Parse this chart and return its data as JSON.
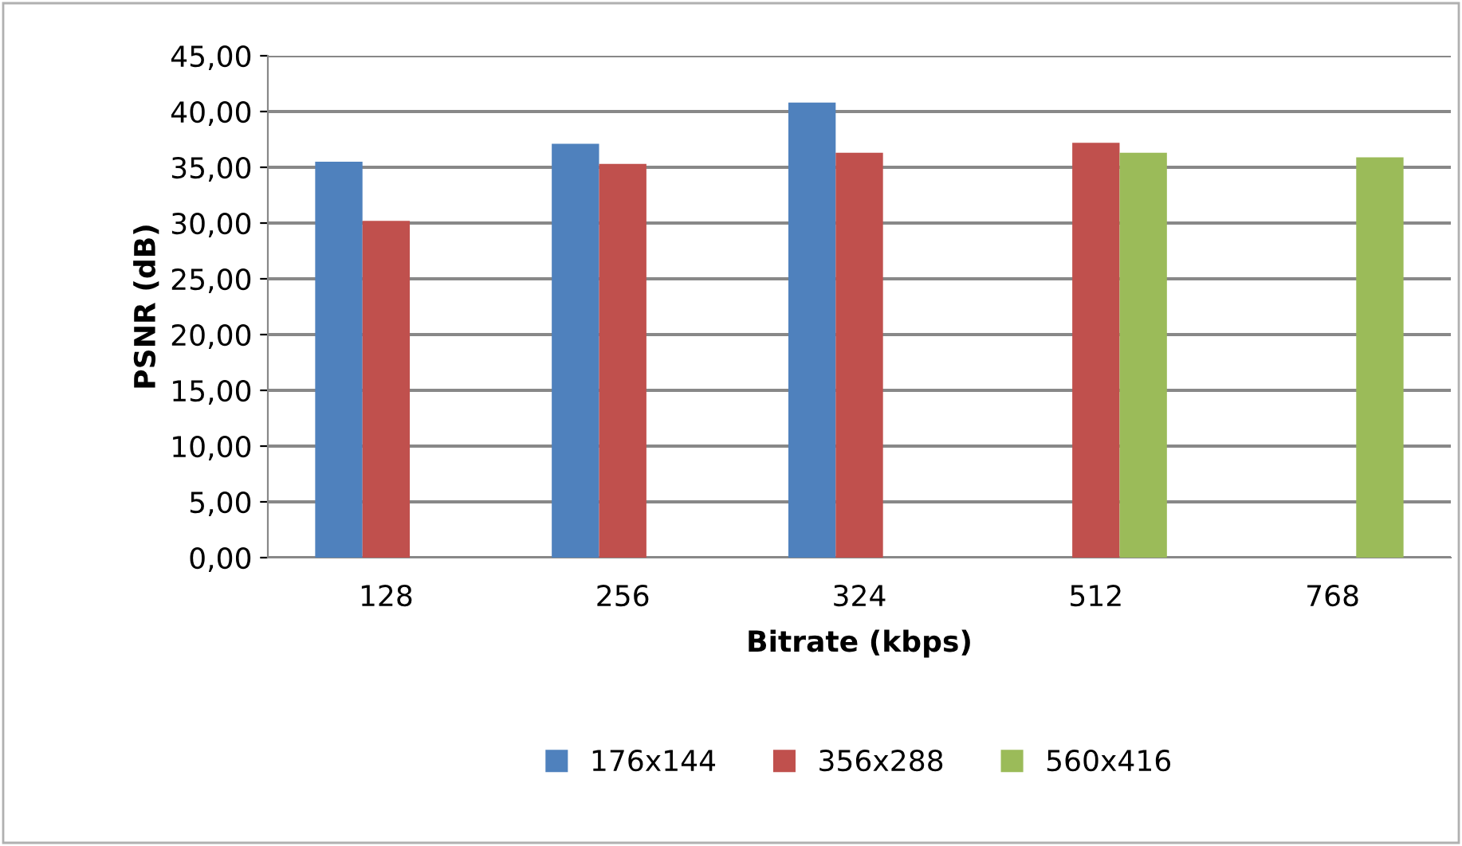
{
  "chart_data": {
    "type": "bar",
    "xlabel": "Bitrate (kbps)",
    "ylabel": "PSNR (dB)",
    "categories": [
      "128",
      "256",
      "324",
      "512",
      "768"
    ],
    "series": [
      {
        "name": "176x144",
        "color": "#4f81bd",
        "values": [
          35.5,
          37.1,
          40.8,
          null,
          null
        ]
      },
      {
        "name": "356x288",
        "color": "#c0504d",
        "values": [
          30.2,
          35.3,
          36.3,
          37.2,
          null
        ]
      },
      {
        "name": "560x416",
        "color": "#9bbb59",
        "values": [
          null,
          null,
          null,
          36.3,
          35.9
        ]
      }
    ],
    "ylim": [
      0,
      45
    ],
    "yticks": [
      {
        "value": 0,
        "label": "0,00"
      },
      {
        "value": 5,
        "label": "5,00"
      },
      {
        "value": 10,
        "label": "10,00"
      },
      {
        "value": 15,
        "label": "15,00"
      },
      {
        "value": 20,
        "label": "20,00"
      },
      {
        "value": 25,
        "label": "25,00"
      },
      {
        "value": 30,
        "label": "30,00"
      },
      {
        "value": 35,
        "label": "35,00"
      },
      {
        "value": 40,
        "label": "40,00"
      },
      {
        "value": 45,
        "label": "45,00"
      }
    ],
    "grid": "y",
    "legend": "bottom"
  }
}
